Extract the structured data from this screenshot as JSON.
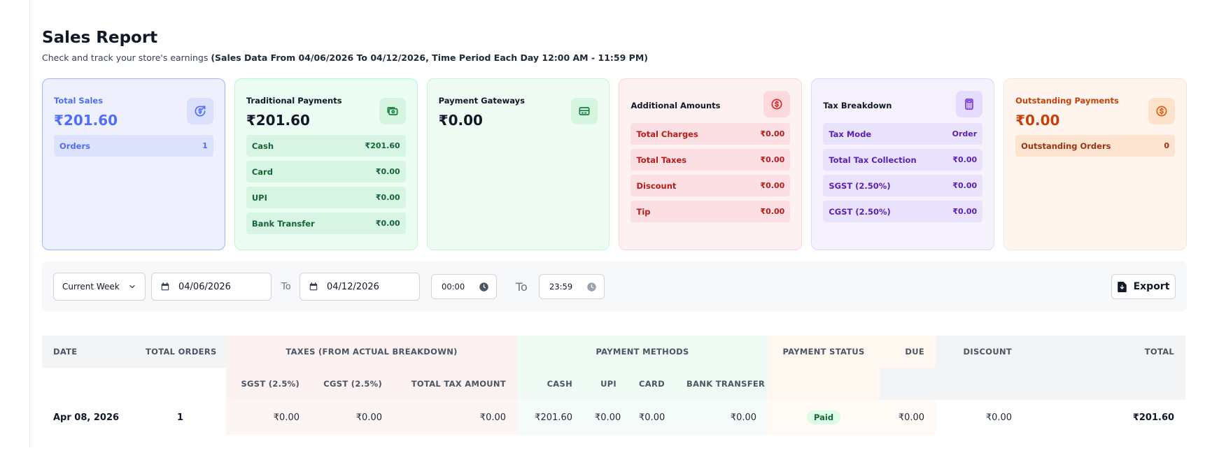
{
  "header": {
    "title": "Sales Report",
    "subtitle_plain": "Check and track your store's earnings",
    "subtitle_bold": "(Sales Data From 04/06/2026 To 04/12/2026, Time Period Each Day 12:00 AM - 11:59 PM)"
  },
  "cards": {
    "total_sales": {
      "label": "Total Sales",
      "amount": "₹201.60",
      "icon": "dollar-refresh-icon",
      "rows": [
        {
          "label": "Orders",
          "value": "1"
        }
      ]
    },
    "traditional": {
      "label": "Traditional Payments",
      "amount": "₹201.60",
      "icon": "cash-icon",
      "rows": [
        {
          "label": "Cash",
          "value": "₹201.60"
        },
        {
          "label": "Card",
          "value": "₹0.00"
        },
        {
          "label": "UPI",
          "value": "₹0.00"
        },
        {
          "label": "Bank Transfer",
          "value": "₹0.00"
        }
      ]
    },
    "gateways": {
      "label": "Payment Gateways",
      "amount": "₹0.00",
      "icon": "credit-card-icon"
    },
    "additional": {
      "label": "Additional Amounts",
      "icon": "dollar-circle-icon",
      "rows": [
        {
          "label": "Total Charges",
          "value": "₹0.00"
        },
        {
          "label": "Total Taxes",
          "value": "₹0.00"
        },
        {
          "label": "Discount",
          "value": "₹0.00"
        },
        {
          "label": "Tip",
          "value": "₹0.00"
        }
      ]
    },
    "tax": {
      "label": "Tax Breakdown",
      "icon": "calculator-icon",
      "rows": [
        {
          "label": "Tax Mode",
          "value": "Order"
        },
        {
          "label": "Total Tax Collection",
          "value": "₹0.00"
        },
        {
          "label": "SGST (2.50%)",
          "value": "₹0.00"
        },
        {
          "label": "CGST (2.50%)",
          "value": "₹0.00"
        }
      ]
    },
    "outstanding": {
      "label": "Outstanding Payments",
      "amount": "₹0.00",
      "icon": "dollar-circle-icon",
      "rows": [
        {
          "label": "Outstanding Orders",
          "value": "0"
        }
      ]
    }
  },
  "filters": {
    "period": "Current Week",
    "start_date": "04/06/2026",
    "to_label": "To",
    "end_date": "04/12/2026",
    "start_time": "00:00",
    "end_time": "23:59",
    "export_label": "Export"
  },
  "table": {
    "headers": {
      "date": "DATE",
      "total_orders": "TOTAL ORDERS",
      "taxes": "TAXES (FROM ACTUAL BREAKDOWN)",
      "payment_methods": "PAYMENT METHODS",
      "payment_status": "PAYMENT STATUS",
      "due": "DUE",
      "discount": "DISCOUNT",
      "total": "TOTAL",
      "sgst": "SGST (2.5%)",
      "cgst": "CGST (2.5%)",
      "total_tax": "TOTAL TAX AMOUNT",
      "cash": "CASH",
      "upi": "UPI",
      "card": "CARD",
      "bank_transfer": "BANK TRANSFER"
    },
    "rows": [
      {
        "date": "Apr 08, 2026",
        "orders": "1",
        "sgst": "₹0.00",
        "cgst": "₹0.00",
        "total_tax": "₹0.00",
        "cash": "₹201.60",
        "upi": "₹0.00",
        "card": "₹0.00",
        "bank": "₹0.00",
        "status": "Paid",
        "due": "₹0.00",
        "discount": "₹0.00",
        "total": "₹201.60"
      }
    ]
  },
  "colors": {
    "blue_accent": "#4f6ef7",
    "green_text": "#166534",
    "red_text": "#b91c1c",
    "purple_text": "#5b21b6",
    "orange_text": "#c2410c"
  }
}
